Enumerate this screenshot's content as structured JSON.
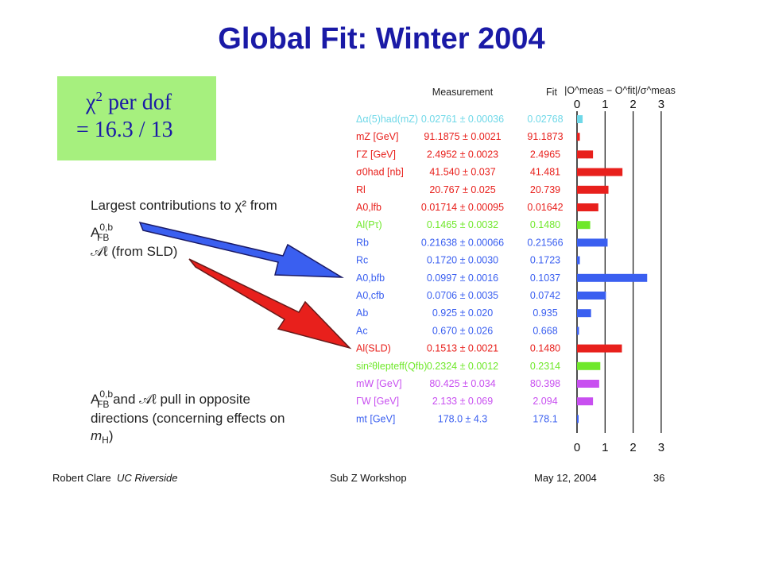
{
  "title": "Global Fit: Winter 2004",
  "chi_box": {
    "line1": "χ",
    "line1_sup": "2",
    "line1_rest": " per dof",
    "line2": "= 16.3 / 13"
  },
  "notes": {
    "largest_intro": "Largest contributions to χ² from",
    "item1": "A",
    "item1_sup": "0,b",
    "item1_sub": "FB",
    "item2": "𝒜ℓ (from SLD)",
    "pull_line1": "A",
    "pull_sup": "0,b",
    "pull_sub": "FB",
    "pull_rest": " and 𝒜ℓ pull in opposite",
    "pull_line2": "directions (concerning effects on",
    "pull_line3": "m",
    "pull_line3_sub": "H",
    "pull_line3_rest": ")"
  },
  "chart_data": {
    "type": "bar",
    "column_headers": {
      "measurement": "Measurement",
      "fit": "Fit",
      "pull": "|O^meas − O^fit|/σ^meas"
    },
    "xlim": [
      0,
      3
    ],
    "x_ticks": [
      "0",
      "1",
      "2",
      "3"
    ],
    "rows": [
      {
        "label": "Δα(5)had(mZ)",
        "measurement": "0.02761 ± 0.00036",
        "fit": "0.02768",
        "pull": 0.2,
        "color": "#6fd8e8"
      },
      {
        "label": "mZ [GeV]",
        "measurement": "91.1875 ± 0.0021",
        "fit": "91.1873",
        "pull": 0.1,
        "color": "#e8201c"
      },
      {
        "label": "ΓZ [GeV]",
        "measurement": "2.4952 ± 0.0023",
        "fit": "2.4965",
        "pull": 0.57,
        "color": "#e8201c"
      },
      {
        "label": "σ0had [nb]",
        "measurement": "41.540 ± 0.037",
        "fit": "41.481",
        "pull": 1.62,
        "color": "#e8201c"
      },
      {
        "label": "Rl",
        "measurement": "20.767 ± 0.025",
        "fit": "20.739",
        "pull": 1.12,
        "color": "#e8201c"
      },
      {
        "label": "A0,lfb",
        "measurement": "0.01714 ± 0.00095",
        "fit": "0.01642",
        "pull": 0.76,
        "color": "#e8201c"
      },
      {
        "label": "Al(Pτ)",
        "measurement": "0.1465 ± 0.0032",
        "fit": "0.1480",
        "pull": 0.47,
        "color": "#6fe82a"
      },
      {
        "label": "Rb",
        "measurement": "0.21638 ± 0.00066",
        "fit": "0.21566",
        "pull": 1.09,
        "color": "#3a5ff0"
      },
      {
        "label": "Rc",
        "measurement": "0.1720 ± 0.0030",
        "fit": "0.1723",
        "pull": 0.1,
        "color": "#3a5ff0"
      },
      {
        "label": "A0,bfb",
        "measurement": "0.0997 ± 0.0016",
        "fit": "0.1037",
        "pull": 2.5,
        "color": "#3a5ff0"
      },
      {
        "label": "A0,cfb",
        "measurement": "0.0706 ± 0.0035",
        "fit": "0.0742",
        "pull": 1.03,
        "color": "#3a5ff0"
      },
      {
        "label": "Ab",
        "measurement": "0.925 ± 0.020",
        "fit": "0.935",
        "pull": 0.5,
        "color": "#3a5ff0"
      },
      {
        "label": "Ac",
        "measurement": "0.670 ± 0.026",
        "fit": "0.668",
        "pull": 0.07,
        "color": "#3a5ff0"
      },
      {
        "label": "Al(SLD)",
        "measurement": "0.1513 ± 0.0021",
        "fit": "0.1480",
        "pull": 1.6,
        "color": "#e8201c"
      },
      {
        "label": "sin²θlepteff(Qfb)",
        "measurement": "0.2324 ± 0.0012",
        "fit": "0.2314",
        "pull": 0.83,
        "color": "#6fe82a"
      },
      {
        "label": "mW [GeV]",
        "measurement": "80.425 ± 0.034",
        "fit": "80.398",
        "pull": 0.79,
        "color": "#c84ff0"
      },
      {
        "label": "ΓW [GeV]",
        "measurement": "2.133 ± 0.069",
        "fit": "2.094",
        "pull": 0.57,
        "color": "#c84ff0"
      },
      {
        "label": "mt [GeV]",
        "measurement": "178.0 ± 4.3",
        "fit": "178.1",
        "pull": 0.02,
        "color": "#3a5ff0"
      }
    ]
  },
  "footer": {
    "author": "Robert Clare",
    "institution": "UC Riverside",
    "event": "Sub Z Workshop",
    "date": "May 12, 2004",
    "page": "36"
  }
}
